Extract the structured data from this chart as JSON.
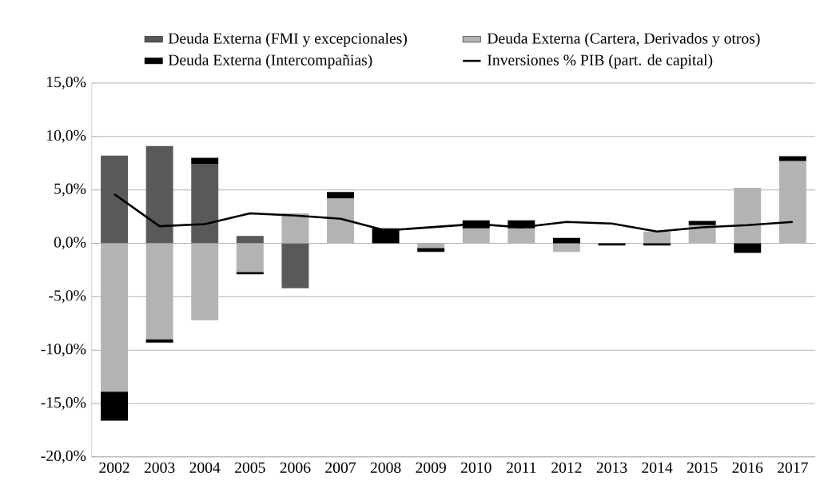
{
  "chart_data": {
    "type": "bar",
    "stacked": true,
    "categories": [
      "2002",
      "2003",
      "2004",
      "2005",
      "2006",
      "2007",
      "2008",
      "2009",
      "2010",
      "2011",
      "2012",
      "2013",
      "2014",
      "2015",
      "2016",
      "2017"
    ],
    "series": [
      {
        "name": "Deuda Externa (FMI y excepcionales)",
        "color": "#595959",
        "values": [
          8.2,
          9.1,
          7.4,
          0.7,
          -4.2,
          0,
          0,
          0,
          0,
          0,
          0,
          0,
          0,
          0,
          0,
          0
        ]
      },
      {
        "name": "Deuda Externa (Cartera, Derivados y otros)",
        "color": "#b3b3b3",
        "values": [
          -13.9,
          -9.0,
          -7.2,
          -2.7,
          2.8,
          4.2,
          0,
          -0.45,
          1.4,
          1.4,
          -0.8,
          0,
          1.1,
          1.7,
          5.2,
          7.7
        ]
      },
      {
        "name": "Deuda Externa (Intercompañias)",
        "color": "#000000",
        "values": [
          -2.7,
          -0.3,
          0.6,
          -0.2,
          0,
          0.6,
          1.4,
          -0.35,
          0.75,
          0.75,
          0.5,
          -0.2,
          -0.2,
          0.4,
          -0.9,
          0.45
        ]
      },
      {
        "name": "Inversiones % PIB (part. de capital)",
        "type": "line",
        "color": "#000000",
        "values": [
          4.6,
          1.6,
          1.8,
          2.8,
          2.6,
          2.3,
          1.2,
          1.5,
          1.8,
          1.5,
          2.0,
          1.85,
          1.1,
          1.5,
          1.7,
          2.0
        ]
      }
    ],
    "ylim": [
      -20,
      15
    ],
    "yticks": [
      {
        "value": -20,
        "label": "-20,0%"
      },
      {
        "value": -15,
        "label": "-15,0%"
      },
      {
        "value": -10,
        "label": "-10,0%"
      },
      {
        "value": -5,
        "label": "-5,0%"
      },
      {
        "value": 0,
        "label": "0,0%"
      },
      {
        "value": 5,
        "label": "5,0%"
      },
      {
        "value": 10,
        "label": "10,0%"
      },
      {
        "value": 15,
        "label": "15,0%"
      }
    ],
    "grid": "y",
    "legend": "top",
    "marker": "none",
    "line_style": "solid"
  }
}
